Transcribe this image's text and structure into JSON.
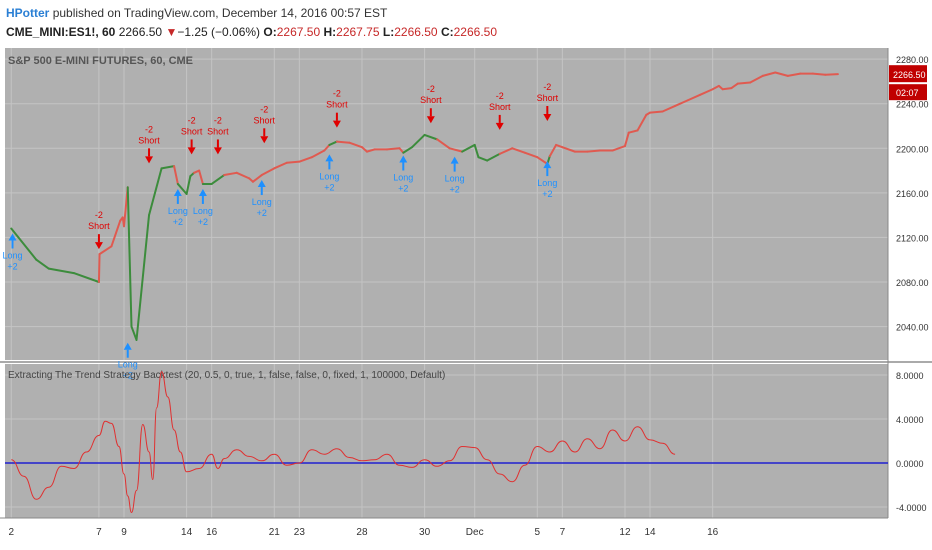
{
  "header": {
    "author": "HPotter",
    "published_text": "published on TradingView.com, December 14, 2016 00:57 EST",
    "symbol": "CME_MINI:ES1!, 60",
    "last": "2266.50",
    "change_arrow": "▼",
    "change": "−1.25 (−0.06%)",
    "open_label": "O:",
    "open": "2267.50",
    "high_label": "H:",
    "high": "2267.75",
    "low_label": "L:",
    "low": "2266.50",
    "close_label": "C:",
    "close": "2266.50"
  },
  "colors": {
    "background": "#b0b0b0",
    "bull": "#3c8c3c",
    "bear": "#e05a50",
    "short_signal": "#e00000",
    "long_signal": "#1e90ff",
    "indicator": "#e03030",
    "zero_line": "#2020d0",
    "price_badge": "#c00000"
  },
  "chart_data": [
    {
      "type": "line",
      "title": "S&P 500 E-MINI FUTURES, 60, CME",
      "ylim": [
        2010,
        2290
      ],
      "y_ticks": [
        2280,
        2240,
        2200,
        2160,
        2120,
        2080,
        2040
      ],
      "y_tick_labels": [
        "2280.00",
        "2240.00",
        "2200.00",
        "2160.00",
        "2120.00",
        "2080.00",
        "2040.00"
      ],
      "last_price_label": "2266.50",
      "countdown_label": "02:07",
      "series": [
        {
          "x": [
            0,
            2,
            3,
            5,
            7,
            7.05,
            8,
            8.7,
            8.9,
            9,
            9.3,
            9.6,
            10,
            11,
            12,
            13,
            13.3,
            14,
            14.3,
            14.6,
            15,
            15.3,
            16,
            17,
            18,
            19,
            19.3,
            20,
            21,
            22,
            23,
            24,
            25,
            25.4,
            26,
            27,
            28,
            28.4,
            29,
            30,
            31,
            31.3,
            32,
            33,
            34,
            35,
            36,
            37,
            37.3,
            38,
            39,
            40,
            41,
            42,
            42.8,
            43,
            43.5,
            44,
            45,
            46,
            47,
            48,
            49,
            49.3,
            50,
            50.7,
            51,
            52,
            53,
            54,
            55,
            56,
            56.5,
            56.8,
            57.5,
            58,
            59,
            60,
            61,
            62,
            63,
            64,
            65,
            66
          ],
          "values": [
            2128,
            2100,
            2092,
            2088,
            2080,
            2105,
            2112,
            2135,
            2138,
            2130,
            2165,
            2040,
            2028,
            2140,
            2182,
            2184,
            2168,
            2159,
            2175,
            2178,
            2180,
            2168,
            2168,
            2176,
            2178,
            2173,
            2170,
            2176,
            2182,
            2187,
            2188,
            2192,
            2198,
            2203,
            2206,
            2205,
            2201,
            2197,
            2199,
            2199,
            2200,
            2196,
            2201,
            2212,
            2208,
            2200,
            2197,
            2203,
            2192,
            2189,
            2195,
            2200,
            2196,
            2192,
            2186,
            2193,
            2203,
            2201,
            2197,
            2197,
            2198,
            2198,
            2202,
            2214,
            2216,
            2230,
            2232,
            2233,
            2238,
            2243,
            2248,
            2253,
            2256,
            2253,
            2254,
            2258,
            2259,
            2265,
            2268,
            2265,
            2267,
            2267,
            2266,
            2266.5
          ]
        }
      ],
      "x_ticks": [
        0,
        7,
        9,
        14,
        16,
        21,
        23,
        28,
        30,
        33,
        37,
        42,
        44,
        49,
        51,
        56,
        58,
        63,
        65,
        70
      ],
      "x_tick_labels": [
        "2",
        "7",
        "9",
        "14",
        "16",
        "21",
        "23",
        "28",
        "30",
        "Dec",
        "5",
        "7",
        "12",
        "14",
        "16"
      ],
      "x_tick_positions": [
        0,
        7,
        9,
        14,
        16,
        21,
        23,
        28,
        33,
        37,
        42,
        44,
        49,
        51,
        56
      ],
      "signals": [
        {
          "x": 0.1,
          "y": 2128,
          "side": "long",
          "labels": [
            "Long",
            "+2"
          ]
        },
        {
          "x": 7.0,
          "y": 2105,
          "side": "short",
          "labels": [
            "-2",
            "Short"
          ]
        },
        {
          "x": 9.3,
          "y": 2030,
          "side": "long",
          "labels": [
            "Long",
            "+2"
          ]
        },
        {
          "x": 11.0,
          "y": 2182,
          "side": "short",
          "labels": [
            "-2",
            "Short"
          ]
        },
        {
          "x": 13.3,
          "y": 2168,
          "side": "long",
          "labels": [
            "Long",
            "+2"
          ]
        },
        {
          "x": 14.4,
          "y": 2190,
          "side": "short",
          "labels": [
            "-2",
            "Short"
          ]
        },
        {
          "x": 15.3,
          "y": 2168,
          "side": "long",
          "labels": [
            "Long",
            "+2"
          ]
        },
        {
          "x": 16.5,
          "y": 2190,
          "side": "short",
          "labels": [
            "-2",
            "Short"
          ]
        },
        {
          "x": 20.0,
          "y": 2176,
          "side": "long",
          "labels": [
            "Long",
            "+2"
          ]
        },
        {
          "x": 20.2,
          "y": 2200,
          "side": "short",
          "labels": [
            "-2",
            "Short"
          ]
        },
        {
          "x": 25.4,
          "y": 2199,
          "side": "long",
          "labels": [
            "Long",
            "+2"
          ]
        },
        {
          "x": 26.0,
          "y": 2214,
          "side": "short",
          "labels": [
            "-2",
            "Short"
          ]
        },
        {
          "x": 31.3,
          "y": 2198,
          "side": "long",
          "labels": [
            "Long",
            "+2"
          ]
        },
        {
          "x": 33.5,
          "y": 2218,
          "side": "short",
          "labels": [
            "-2",
            "Short"
          ]
        },
        {
          "x": 35.4,
          "y": 2197,
          "side": "long",
          "labels": [
            "Long",
            "+2"
          ]
        },
        {
          "x": 39.0,
          "y": 2212,
          "side": "short",
          "labels": [
            "-2",
            "Short"
          ]
        },
        {
          "x": 42.8,
          "y": 2193,
          "side": "long",
          "labels": [
            "Long",
            "+2"
          ]
        },
        {
          "x": 42.8,
          "y": 2220,
          "side": "short",
          "labels": [
            "-2",
            "Short"
          ]
        }
      ]
    },
    {
      "type": "line",
      "title": "Extracting The Trend Strategy Backtest (20, 0.5, 0, true, 1, false, false, 0, fixed, 1, 100000, Default)",
      "ylim": [
        -5,
        9
      ],
      "y_ticks": [
        8,
        4,
        0,
        -4
      ],
      "y_tick_labels": [
        "8.0000",
        "4.0000",
        "0.0000",
        "-4.0000"
      ],
      "series": [
        {
          "x": [
            0,
            1,
            2,
            3,
            4,
            5,
            6,
            7,
            7.5,
            8,
            8.6,
            9,
            9.3,
            9.6,
            10,
            10.5,
            11,
            11.3,
            11.6,
            12,
            12.5,
            13,
            13.5,
            14,
            15,
            16,
            16.5,
            17,
            18,
            19,
            20,
            21,
            22,
            23,
            24,
            25,
            26,
            27,
            28,
            29,
            30,
            31,
            32,
            33,
            34,
            35,
            36,
            37,
            38,
            39,
            40,
            41,
            42,
            43,
            44,
            45,
            46,
            47,
            48,
            49,
            50,
            51,
            52,
            53
          ],
          "values": [
            0.3,
            -1.2,
            -3.3,
            -2.2,
            -0.3,
            -0.5,
            1.0,
            2.5,
            3.8,
            3.6,
            1.5,
            -1.0,
            -3.0,
            -4.5,
            -2.5,
            3.5,
            1.0,
            -1.5,
            5.0,
            8.3,
            6.0,
            3.0,
            1.0,
            -0.8,
            -0.5,
            0.8,
            -0.5,
            0.4,
            1.2,
            0.6,
            0.2,
            0.8,
            -0.2,
            0.0,
            1.2,
            0.8,
            1.3,
            0.5,
            0.2,
            0.3,
            0.8,
            -0.2,
            -0.4,
            0.3,
            -0.3,
            0.2,
            1.5,
            1.4,
            0.3,
            -1.0,
            -1.7,
            -0.2,
            1.5,
            1.0,
            2.0,
            1.0,
            2.2,
            1.3,
            3.0,
            2.0,
            3.3,
            2.1,
            1.8,
            0.8
          ]
        }
      ]
    }
  ]
}
